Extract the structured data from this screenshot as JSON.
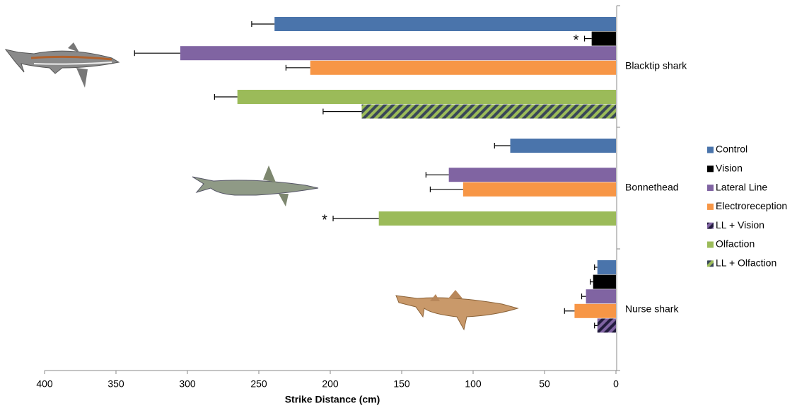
{
  "chart_data": {
    "type": "bar",
    "orientation": "horizontal",
    "x_label": "Strike Distance (cm)",
    "categories": [
      "Blacktip shark",
      "Bonnethead",
      "Nurse shark"
    ],
    "series": [
      {
        "name": "Control",
        "color": "#4a74ab",
        "values": [
          239,
          74,
          13
        ],
        "errors": [
          16,
          11,
          2
        ]
      },
      {
        "name": "Vision",
        "color": "#000000",
        "values": [
          17,
          null,
          16
        ],
        "errors": [
          5,
          null,
          2
        ]
      },
      {
        "name": "Lateral Line",
        "color": "#8064a2",
        "values": [
          305,
          117,
          21
        ],
        "errors": [
          32,
          16,
          3
        ]
      },
      {
        "name": "Electroreception",
        "color": "#f79646",
        "values": [
          214,
          107,
          29
        ],
        "errors": [
          17,
          23,
          7
        ]
      },
      {
        "name": "LL + Vision",
        "color": "#8064a2",
        "hatch": "#231c3e",
        "values": [
          null,
          null,
          13
        ],
        "errors": [
          null,
          null,
          2
        ]
      },
      {
        "name": "Olfaction",
        "color": "#9bbb59",
        "values": [
          265,
          166,
          null
        ],
        "errors": [
          16,
          32,
          null
        ]
      },
      {
        "name": "LL + Olfaction",
        "color": "#9bbb59",
        "hatch": "#3a4758",
        "values": [
          178,
          null,
          null
        ],
        "errors": [
          27,
          null,
          null
        ]
      }
    ],
    "annotations": [
      {
        "text": "*",
        "category": "Blacktip shark",
        "series": "Vision"
      },
      {
        "text": "*",
        "category": "Bonnethead",
        "series": "Olfaction"
      }
    ],
    "xlim": [
      400,
      0
    ],
    "xticks": [
      400,
      350,
      300,
      250,
      200,
      150,
      100,
      50,
      0
    ],
    "legend": "right"
  }
}
